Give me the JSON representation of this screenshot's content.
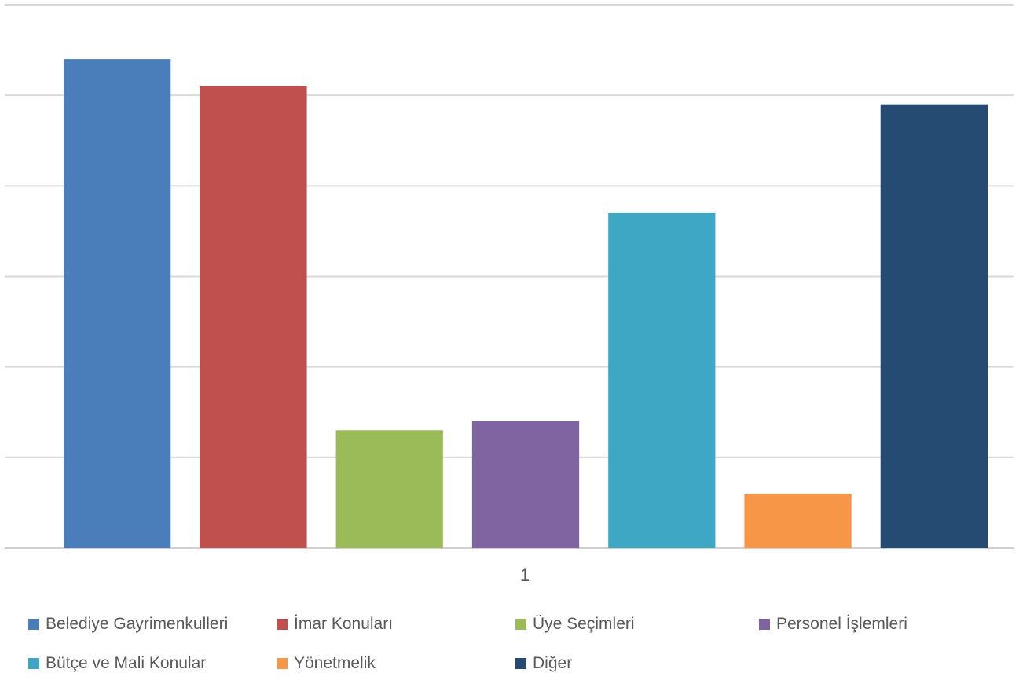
{
  "chart_data": {
    "type": "bar",
    "categories": [
      "1"
    ],
    "series": [
      {
        "name": "Belediye Gayrimenkulleri",
        "values": [
          5.4
        ],
        "color": "#4A7EBB"
      },
      {
        "name": "İmar Konuları",
        "values": [
          5.1
        ],
        "color": "#C0504D"
      },
      {
        "name": "Üye Seçimleri",
        "values": [
          1.3
        ],
        "color": "#9BBB59"
      },
      {
        "name": "Personel İşlemleri",
        "values": [
          1.4
        ],
        "color": "#8064A2"
      },
      {
        "name": "Bütçe ve Mali Konular",
        "values": [
          3.7
        ],
        "color": "#3EA8C4"
      },
      {
        "name": "Yönetmelik",
        "values": [
          0.6
        ],
        "color": "#F79646"
      },
      {
        "name": "Diğer",
        "values": [
          4.9
        ],
        "color": "#264B73"
      }
    ],
    "title": "",
    "xlabel": "",
    "ylabel": "",
    "ylim": [
      0,
      6
    ],
    "grid": true,
    "legend_position": "bottom"
  }
}
